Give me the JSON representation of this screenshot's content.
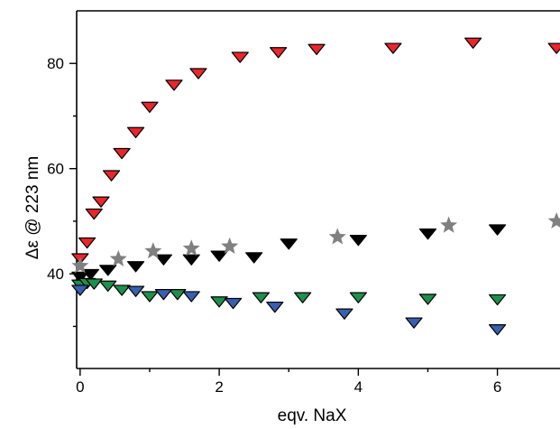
{
  "chart_data": {
    "type": "scatter",
    "title": "",
    "xlabel": "eqv. NaX",
    "ylabel": "Δε @ 223 nm",
    "xlim": [
      -0.05,
      6.9
    ],
    "ylim": [
      22,
      90
    ],
    "xticks": [
      "0",
      "2",
      "4",
      "6"
    ],
    "yticks": [
      "40",
      "60",
      "80"
    ],
    "grid": false,
    "legend": "none",
    "series": [
      {
        "marker": "triangle-down",
        "color": "#e8262c",
        "points": [
          {
            "x": 0.0,
            "y": 43.0
          },
          {
            "x": 0.1,
            "y": 46.0
          },
          {
            "x": 0.2,
            "y": 51.5
          },
          {
            "x": 0.3,
            "y": 53.8
          },
          {
            "x": 0.45,
            "y": 58.8
          },
          {
            "x": 0.6,
            "y": 63.0
          },
          {
            "x": 0.8,
            "y": 67.0
          },
          {
            "x": 1.0,
            "y": 71.8
          },
          {
            "x": 1.35,
            "y": 76.0
          },
          {
            "x": 1.7,
            "y": 78.2
          },
          {
            "x": 2.3,
            "y": 81.3
          },
          {
            "x": 2.85,
            "y": 82.2
          },
          {
            "x": 3.4,
            "y": 82.8
          },
          {
            "x": 4.5,
            "y": 83.0
          },
          {
            "x": 5.65,
            "y": 84.0
          },
          {
            "x": 6.85,
            "y": 83.0
          }
        ]
      },
      {
        "marker": "triangle-down",
        "color": "#000000",
        "points": [
          {
            "x": 0.0,
            "y": 39.5
          },
          {
            "x": 0.15,
            "y": 40.0
          },
          {
            "x": 0.4,
            "y": 40.8
          },
          {
            "x": 0.8,
            "y": 41.5
          },
          {
            "x": 1.2,
            "y": 42.8
          },
          {
            "x": 1.6,
            "y": 42.8
          },
          {
            "x": 2.0,
            "y": 43.5
          },
          {
            "x": 2.5,
            "y": 43.2
          },
          {
            "x": 3.0,
            "y": 45.8
          },
          {
            "x": 4.0,
            "y": 46.5
          },
          {
            "x": 5.0,
            "y": 47.7
          },
          {
            "x": 6.0,
            "y": 48.5
          }
        ]
      },
      {
        "marker": "star",
        "color": "#808080",
        "points": [
          {
            "x": 0.0,
            "y": 41.5
          },
          {
            "x": 0.55,
            "y": 42.8
          },
          {
            "x": 1.05,
            "y": 44.3
          },
          {
            "x": 1.6,
            "y": 44.8
          },
          {
            "x": 2.15,
            "y": 45.2
          },
          {
            "x": 3.7,
            "y": 47.0
          },
          {
            "x": 5.3,
            "y": 49.2
          },
          {
            "x": 6.85,
            "y": 50.0
          }
        ]
      },
      {
        "marker": "triangle-down",
        "color": "#1f8f4e",
        "points": [
          {
            "x": 0.0,
            "y": 38.0
          },
          {
            "x": 0.1,
            "y": 38.3
          },
          {
            "x": 0.2,
            "y": 38.2
          },
          {
            "x": 0.4,
            "y": 37.8
          },
          {
            "x": 0.6,
            "y": 37.0
          },
          {
            "x": 1.0,
            "y": 35.8
          },
          {
            "x": 1.4,
            "y": 36.2
          },
          {
            "x": 2.0,
            "y": 34.8
          },
          {
            "x": 2.6,
            "y": 35.6
          },
          {
            "x": 3.2,
            "y": 35.6
          },
          {
            "x": 4.0,
            "y": 35.6
          },
          {
            "x": 5.0,
            "y": 35.3
          },
          {
            "x": 6.0,
            "y": 35.2
          }
        ]
      },
      {
        "marker": "triangle-down",
        "color": "#3a5fb0",
        "points": [
          {
            "x": 0.0,
            "y": 37.0
          },
          {
            "x": 0.8,
            "y": 36.8
          },
          {
            "x": 1.2,
            "y": 36.2
          },
          {
            "x": 1.6,
            "y": 35.8
          },
          {
            "x": 2.2,
            "y": 34.5
          },
          {
            "x": 2.8,
            "y": 33.8
          },
          {
            "x": 3.8,
            "y": 32.5
          },
          {
            "x": 4.8,
            "y": 30.8
          },
          {
            "x": 6.0,
            "y": 29.5
          }
        ]
      }
    ]
  }
}
